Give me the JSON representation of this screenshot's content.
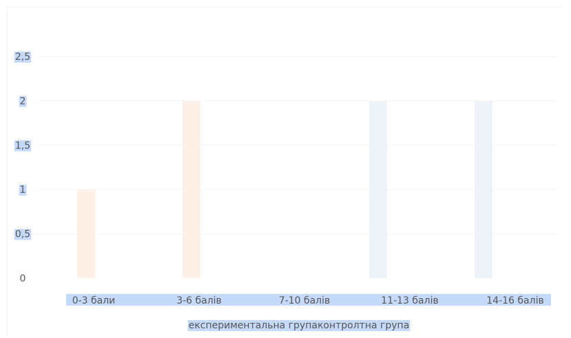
{
  "chart_data": {
    "type": "bar",
    "categories": [
      "0-3 бали",
      "3-6 балів",
      "7-10 балів",
      "11-13 балів",
      "14-16 балів"
    ],
    "series": [
      {
        "name": "експериментальна група",
        "values": [
          1,
          2,
          0,
          0,
          0
        ],
        "color": "#fdf0e7"
      },
      {
        "name": "контролтна група",
        "values": [
          0,
          0,
          2,
          2,
          0
        ],
        "color": "#eef3fa"
      }
    ],
    "y_ticks": [
      "0",
      "0,5",
      "1",
      "1,5",
      "2",
      "2,5"
    ],
    "ylim": [
      0,
      2.5
    ],
    "legend_text": "експериментальна групаконтролтна група",
    "legend_position": "bottom",
    "grid": true,
    "colors": {
      "label_highlight": "#c5dafb",
      "gridline": "#f5f5f5",
      "text": "#555555"
    }
  }
}
